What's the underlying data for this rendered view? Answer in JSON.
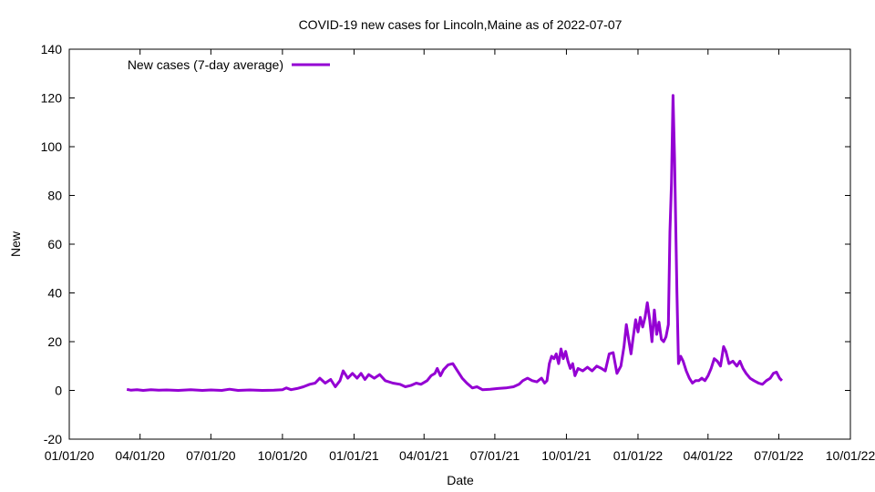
{
  "chart_data": {
    "type": "line",
    "title": "COVID-19 new cases for Lincoln,Maine as of 2022-07-07",
    "xlabel": "Date",
    "ylabel": "New",
    "xlim": [
      "2020-01-01",
      "2022-10-01"
    ],
    "ylim": [
      -20,
      140
    ],
    "x_ticks": [
      "01/01/20",
      "04/01/20",
      "07/01/20",
      "10/01/20",
      "01/01/21",
      "04/01/21",
      "07/01/21",
      "10/01/21",
      "01/01/22",
      "04/01/22",
      "07/01/22",
      "10/01/22"
    ],
    "x_tick_dates": [
      "2020-01-01",
      "2020-04-01",
      "2020-07-01",
      "2020-10-01",
      "2021-01-01",
      "2021-04-01",
      "2021-07-01",
      "2021-10-01",
      "2022-01-01",
      "2022-04-01",
      "2022-07-01",
      "2022-10-01"
    ],
    "y_ticks": [
      -20,
      0,
      20,
      40,
      60,
      80,
      100,
      120,
      140
    ],
    "grid": false,
    "legend_position": "top-left",
    "series": [
      {
        "name": "New cases (7-day average)",
        "color": "#9400d3",
        "points": [
          [
            "2020-03-15",
            0.4
          ],
          [
            "2020-03-20",
            0.1
          ],
          [
            "2020-03-28",
            0.3
          ],
          [
            "2020-04-05",
            0.0
          ],
          [
            "2020-04-15",
            0.3
          ],
          [
            "2020-04-25",
            0.1
          ],
          [
            "2020-05-05",
            0.2
          ],
          [
            "2020-05-20",
            0.0
          ],
          [
            "2020-06-05",
            0.3
          ],
          [
            "2020-06-20",
            0.0
          ],
          [
            "2020-07-01",
            0.2
          ],
          [
            "2020-07-15",
            0.0
          ],
          [
            "2020-07-25",
            0.5
          ],
          [
            "2020-08-05",
            0.0
          ],
          [
            "2020-08-20",
            0.2
          ],
          [
            "2020-09-05",
            0.0
          ],
          [
            "2020-09-20",
            0.1
          ],
          [
            "2020-10-01",
            0.3
          ],
          [
            "2020-10-06",
            1.0
          ],
          [
            "2020-10-12",
            0.3
          ],
          [
            "2020-10-20",
            0.8
          ],
          [
            "2020-10-28",
            1.5
          ],
          [
            "2020-11-05",
            2.5
          ],
          [
            "2020-11-12",
            3.0
          ],
          [
            "2020-11-18",
            5.0
          ],
          [
            "2020-11-25",
            3.0
          ],
          [
            "2020-12-02",
            4.5
          ],
          [
            "2020-12-08",
            1.5
          ],
          [
            "2020-12-14",
            4.0
          ],
          [
            "2020-12-18",
            8.0
          ],
          [
            "2020-12-24",
            5.0
          ],
          [
            "2020-12-30",
            7.0
          ],
          [
            "2021-01-05",
            5.0
          ],
          [
            "2021-01-10",
            7.0
          ],
          [
            "2021-01-15",
            4.5
          ],
          [
            "2021-01-20",
            6.5
          ],
          [
            "2021-01-27",
            5.0
          ],
          [
            "2021-02-03",
            6.5
          ],
          [
            "2021-02-10",
            4.0
          ],
          [
            "2021-02-20",
            3.0
          ],
          [
            "2021-03-01",
            2.5
          ],
          [
            "2021-03-08",
            1.5
          ],
          [
            "2021-03-15",
            2.0
          ],
          [
            "2021-03-22",
            3.0
          ],
          [
            "2021-03-28",
            2.5
          ],
          [
            "2021-04-05",
            4.0
          ],
          [
            "2021-04-10",
            6.0
          ],
          [
            "2021-04-15",
            7.0
          ],
          [
            "2021-04-18",
            9.0
          ],
          [
            "2021-04-22",
            6.0
          ],
          [
            "2021-04-26",
            8.5
          ],
          [
            "2021-05-02",
            10.5
          ],
          [
            "2021-05-08",
            11.0
          ],
          [
            "2021-05-14",
            8.0
          ],
          [
            "2021-05-20",
            5.0
          ],
          [
            "2021-05-26",
            3.0
          ],
          [
            "2021-06-02",
            1.0
          ],
          [
            "2021-06-08",
            1.5
          ],
          [
            "2021-06-15",
            0.3
          ],
          [
            "2021-06-25",
            0.5
          ],
          [
            "2021-07-05",
            0.8
          ],
          [
            "2021-07-15",
            1.0
          ],
          [
            "2021-07-25",
            1.5
          ],
          [
            "2021-08-01",
            2.5
          ],
          [
            "2021-08-06",
            4.0
          ],
          [
            "2021-08-12",
            5.0
          ],
          [
            "2021-08-18",
            4.0
          ],
          [
            "2021-08-24",
            3.5
          ],
          [
            "2021-08-30",
            5.0
          ],
          [
            "2021-09-03",
            3.0
          ],
          [
            "2021-09-06",
            4.0
          ],
          [
            "2021-09-09",
            11.0
          ],
          [
            "2021-09-12",
            14.0
          ],
          [
            "2021-09-15",
            13.0
          ],
          [
            "2021-09-18",
            15.0
          ],
          [
            "2021-09-21",
            11.0
          ],
          [
            "2021-09-24",
            17.0
          ],
          [
            "2021-09-27",
            13.0
          ],
          [
            "2021-09-30",
            16.0
          ],
          [
            "2021-10-03",
            12.0
          ],
          [
            "2021-10-06",
            9.0
          ],
          [
            "2021-10-09",
            11.0
          ],
          [
            "2021-10-12",
            6.0
          ],
          [
            "2021-10-16",
            9.0
          ],
          [
            "2021-10-22",
            8.0
          ],
          [
            "2021-10-28",
            9.5
          ],
          [
            "2021-11-03",
            8.0
          ],
          [
            "2021-11-09",
            10.0
          ],
          [
            "2021-11-15",
            9.0
          ],
          [
            "2021-11-20",
            8.0
          ],
          [
            "2021-11-25",
            15.0
          ],
          [
            "2021-11-30",
            15.5
          ],
          [
            "2021-12-05",
            7.0
          ],
          [
            "2021-12-10",
            10.0
          ],
          [
            "2021-12-14",
            18.0
          ],
          [
            "2021-12-17",
            27.0
          ],
          [
            "2021-12-20",
            21.0
          ],
          [
            "2021-12-23",
            15.0
          ],
          [
            "2021-12-26",
            22.0
          ],
          [
            "2021-12-29",
            29.0
          ],
          [
            "2022-01-01",
            24.0
          ],
          [
            "2022-01-04",
            30.0
          ],
          [
            "2022-01-07",
            26.0
          ],
          [
            "2022-01-10",
            30.0
          ],
          [
            "2022-01-13",
            36.0
          ],
          [
            "2022-01-16",
            29.0
          ],
          [
            "2022-01-19",
            20.0
          ],
          [
            "2022-01-22",
            33.0
          ],
          [
            "2022-01-25",
            23.0
          ],
          [
            "2022-01-28",
            28.0
          ],
          [
            "2022-01-31",
            21.0
          ],
          [
            "2022-02-03",
            20.0
          ],
          [
            "2022-02-06",
            22.0
          ],
          [
            "2022-02-09",
            27.0
          ],
          [
            "2022-02-11",
            65.0
          ],
          [
            "2022-02-13",
            85.0
          ],
          [
            "2022-02-15",
            121.0
          ],
          [
            "2022-02-17",
            95.0
          ],
          [
            "2022-02-20",
            40.0
          ],
          [
            "2022-02-22",
            11.0
          ],
          [
            "2022-02-25",
            14.0
          ],
          [
            "2022-02-28",
            12.0
          ],
          [
            "2022-03-04",
            8.0
          ],
          [
            "2022-03-08",
            5.0
          ],
          [
            "2022-03-12",
            3.0
          ],
          [
            "2022-03-16",
            4.0
          ],
          [
            "2022-03-20",
            4.0
          ],
          [
            "2022-03-24",
            5.0
          ],
          [
            "2022-03-28",
            4.0
          ],
          [
            "2022-04-01",
            6.0
          ],
          [
            "2022-04-05",
            9.0
          ],
          [
            "2022-04-09",
            13.0
          ],
          [
            "2022-04-13",
            12.0
          ],
          [
            "2022-04-17",
            10.0
          ],
          [
            "2022-04-21",
            18.0
          ],
          [
            "2022-04-24",
            16.0
          ],
          [
            "2022-04-28",
            11.0
          ],
          [
            "2022-05-03",
            12.0
          ],
          [
            "2022-05-08",
            10.0
          ],
          [
            "2022-05-12",
            12.0
          ],
          [
            "2022-05-16",
            9.0
          ],
          [
            "2022-05-20",
            7.0
          ],
          [
            "2022-05-25",
            5.0
          ],
          [
            "2022-05-30",
            4.0
          ],
          [
            "2022-06-05",
            3.0
          ],
          [
            "2022-06-10",
            2.5
          ],
          [
            "2022-06-15",
            4.0
          ],
          [
            "2022-06-20",
            5.0
          ],
          [
            "2022-06-24",
            7.0
          ],
          [
            "2022-06-28",
            7.5
          ],
          [
            "2022-07-02",
            5.0
          ],
          [
            "2022-07-05",
            4.0
          ]
        ]
      }
    ]
  }
}
